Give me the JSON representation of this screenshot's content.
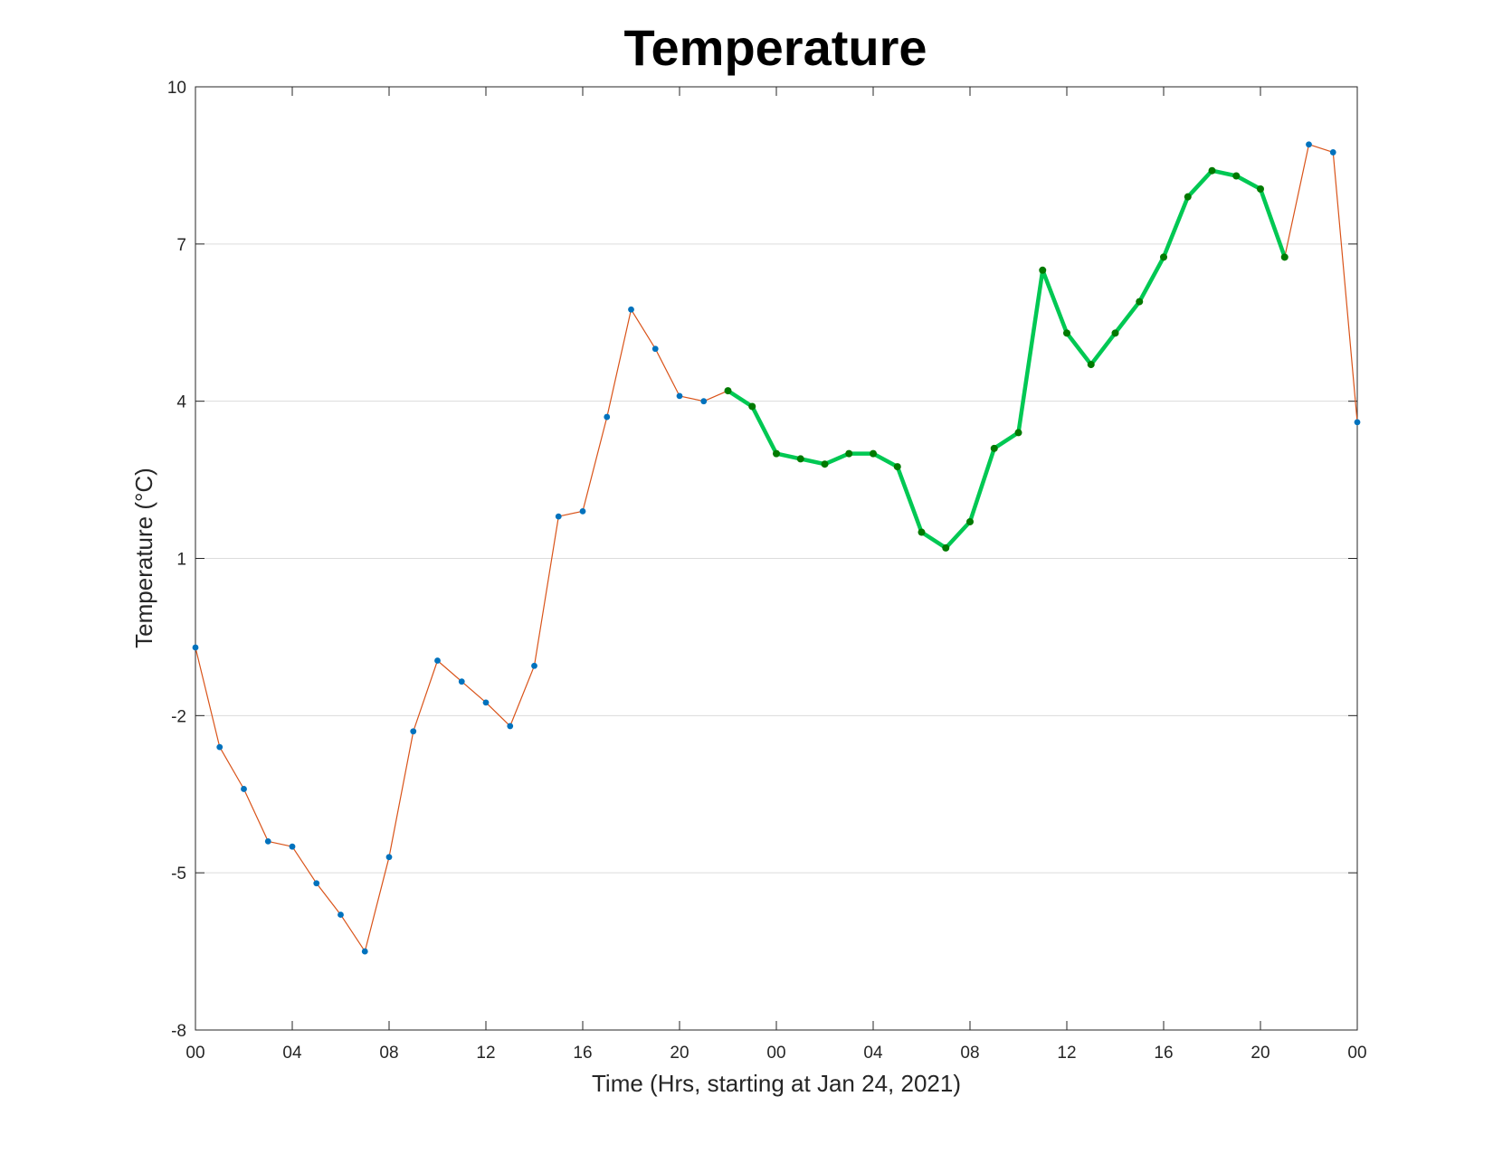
{
  "chart_data": {
    "type": "line",
    "title": "Temperature",
    "xlabel": "Time (Hrs, starting at Jan 24, 2021)",
    "ylabel": "Temperature (°C)",
    "xlim": [
      0,
      48
    ],
    "ylim": [
      -8,
      10
    ],
    "x_ticks": [
      0,
      4,
      8,
      12,
      16,
      20,
      24,
      28,
      32,
      36,
      40,
      44,
      48
    ],
    "x_tick_labels": [
      "00",
      "04",
      "08",
      "12",
      "16",
      "20",
      "00",
      "04",
      "08",
      "12",
      "16",
      "20",
      "00"
    ],
    "y_ticks": [
      -8,
      -5,
      -2,
      1,
      4,
      7,
      10
    ],
    "y_tick_labels": [
      "-8",
      "-5",
      "-2",
      "1",
      "4",
      "7",
      "10"
    ],
    "grid": "horizontal",
    "series": [
      {
        "color": "#d95319",
        "marker_color": "#0072bd",
        "x": [
          0,
          1,
          2,
          3,
          4,
          5,
          6,
          7,
          8,
          9,
          10,
          11,
          12,
          13,
          14,
          15,
          16,
          17,
          18,
          19,
          20,
          21,
          22,
          23,
          24,
          25,
          26,
          27,
          28,
          29,
          30,
          31,
          32,
          33,
          34,
          35,
          36,
          37,
          38,
          39,
          40,
          41,
          42,
          43,
          44,
          45,
          46,
          47,
          48
        ],
        "values": [
          -0.7,
          -2.6,
          -3.4,
          -4.4,
          -4.5,
          -5.2,
          -5.8,
          -6.5,
          -4.7,
          -2.3,
          -0.95,
          -1.35,
          -1.75,
          -2.2,
          -1.05,
          1.8,
          1.9,
          3.7,
          5.75,
          5.0,
          4.1,
          4.0,
          4.2,
          3.9,
          3.0,
          2.9,
          2.8,
          3.0,
          3.0,
          2.75,
          1.5,
          1.2,
          1.7,
          3.1,
          3.4,
          6.5,
          5.3,
          4.7,
          5.3,
          5.9,
          6.75,
          7.9,
          8.4,
          8.3,
          8.05,
          6.75,
          8.9,
          8.75,
          3.6
        ]
      },
      {
        "color": "#00c853",
        "marker_color": "#007a00",
        "x": [
          22,
          23,
          24,
          25,
          26,
          27,
          28,
          29,
          30,
          31,
          32,
          33,
          34,
          35,
          36,
          37,
          38,
          39,
          40,
          41,
          42,
          43,
          44,
          45
        ],
        "values": [
          4.2,
          3.9,
          3.0,
          2.9,
          2.8,
          3.0,
          3.0,
          2.75,
          1.5,
          1.2,
          1.7,
          3.1,
          3.4,
          6.5,
          5.3,
          4.7,
          5.3,
          5.9,
          6.75,
          7.9,
          8.4,
          8.3,
          8.05,
          6.75
        ]
      }
    ]
  }
}
